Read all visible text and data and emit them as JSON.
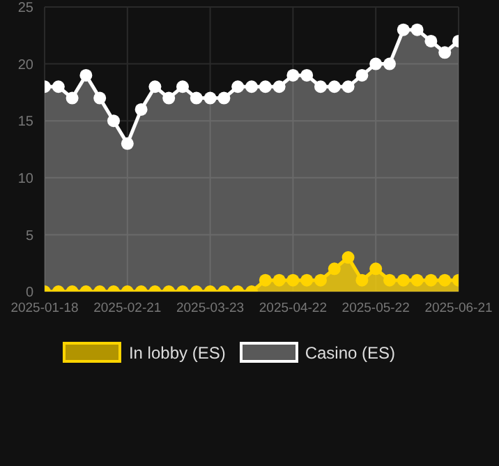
{
  "chart_data": {
    "type": "area",
    "categories": [
      "2025-01-18",
      null,
      null,
      null,
      null,
      null,
      "2025-02-21",
      null,
      null,
      null,
      null,
      null,
      "2025-03-23",
      null,
      null,
      null,
      null,
      null,
      "2025-04-22",
      null,
      null,
      null,
      null,
      null,
      "2025-05-22",
      null,
      null,
      null,
      null,
      null,
      "2025-06-21"
    ],
    "series": [
      {
        "name": "In lobby (ES)",
        "color": "#ffd400",
        "values": [
          0,
          0,
          0,
          0,
          0,
          0,
          0,
          0,
          0,
          0,
          0,
          0,
          0,
          0,
          0,
          0,
          1,
          1,
          1,
          1,
          1,
          2,
          3,
          1,
          2,
          1,
          1,
          1,
          1,
          1,
          1
        ]
      },
      {
        "name": "Casino (ES)",
        "color": "#ffffff",
        "values": [
          18,
          18,
          17,
          19,
          17,
          15,
          13,
          16,
          18,
          17,
          18,
          17,
          17,
          17,
          18,
          18,
          18,
          18,
          19,
          19,
          18,
          18,
          18,
          19,
          20,
          20,
          23,
          23,
          22,
          21,
          22
        ]
      }
    ],
    "ylim": [
      0,
      25
    ],
    "yticks": [
      0,
      5,
      10,
      15,
      20,
      25
    ],
    "grid": true,
    "legend": "bottom",
    "marker": "circle",
    "line_style": "solid"
  }
}
